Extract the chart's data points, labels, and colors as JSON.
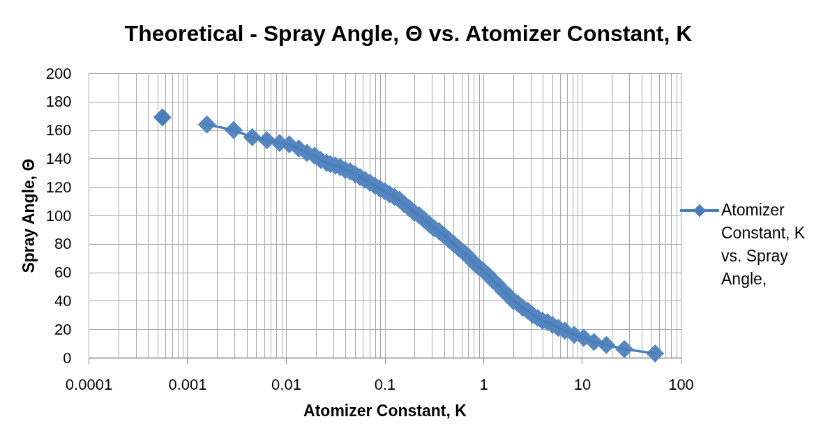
{
  "chart_data": {
    "type": "line",
    "title": "Theoretical - Spray Angle, Θ vs. Atomizer Constant, K",
    "xlabel": "Atomizer Constant, K",
    "ylabel": "Spray Angle, Θ",
    "log": "x",
    "xlim": [
      0.0001,
      100
    ],
    "xticks": [
      0.0001,
      {
        "value": 0.0002,
        "label": null
      },
      {
        "value": 0.0003,
        "label": null
      },
      {
        "value": 0.0004,
        "label": null
      },
      {
        "value": 0.0005,
        "label": null
      },
      {
        "value": 0.0006,
        "label": null
      },
      {
        "value": 0.0007,
        "label": null
      },
      {
        "value": 0.0008,
        "label": null
      },
      {
        "value": 0.0009,
        "label": null
      },
      0.001,
      {
        "value": 0.002,
        "label": null
      },
      {
        "value": 0.003,
        "label": null
      },
      {
        "value": 0.004,
        "label": null
      },
      {
        "value": 0.005,
        "label": null
      },
      {
        "value": 0.006,
        "label": null
      },
      {
        "value": 0.007,
        "label": null
      },
      {
        "value": 0.008,
        "label": null
      },
      {
        "value": 0.009,
        "label": null
      },
      0.01,
      {
        "value": 0.02,
        "label": null
      },
      {
        "value": 0.03,
        "label": null
      },
      {
        "value": 0.04,
        "label": null
      },
      {
        "value": 0.05,
        "label": null
      },
      {
        "value": 0.06,
        "label": null
      },
      {
        "value": 0.07,
        "label": null
      },
      {
        "value": 0.08,
        "label": null
      },
      {
        "value": 0.09,
        "label": null
      },
      0.1,
      {
        "value": 0.2,
        "label": null
      },
      {
        "value": 0.3,
        "label": null
      },
      {
        "value": 0.4,
        "label": null
      },
      {
        "value": 0.5,
        "label": null
      },
      {
        "value": 0.6,
        "label": null
      },
      {
        "value": 0.7,
        "label": null
      },
      {
        "value": 0.8,
        "label": null
      },
      {
        "value": 0.9,
        "label": null
      },
      1,
      {
        "value": 2,
        "label": null
      },
      {
        "value": 3,
        "label": null
      },
      {
        "value": 4,
        "label": null
      },
      {
        "value": 5,
        "label": null
      },
      {
        "value": 6,
        "label": null
      },
      {
        "value": 7,
        "label": null
      },
      {
        "value": 8,
        "label": null
      },
      {
        "value": 9,
        "label": null
      },
      10,
      {
        "value": 20,
        "label": null
      },
      {
        "value": 30,
        "label": null
      },
      {
        "value": 40,
        "label": null
      },
      {
        "value": 50,
        "label": null
      },
      {
        "value": 60,
        "label": null
      },
      {
        "value": 70,
        "label": null
      },
      {
        "value": 80,
        "label": null
      },
      {
        "value": 90,
        "label": null
      },
      100
    ],
    "ylim": [
      0,
      200
    ],
    "yticks": [
      0,
      20,
      40,
      60,
      80,
      100,
      120,
      140,
      160,
      180,
      200
    ],
    "grid": true,
    "legend": "right",
    "marker": "diamond",
    "line_style": "solid",
    "series": [
      {
        "type": "scatter",
        "color": "#4a7ebb",
        "x": [
          0.00056
        ],
        "values": [
          169
        ]
      },
      {
        "name": "Atomizer Constant, K vs. Spray Angle,",
        "color": "#4a7ebb",
        "x": [
          0.00158,
          0.00295,
          0.00455,
          0.0064,
          0.0086,
          0.0108,
          0.0135,
          0.0163,
          0.0195,
          0.0225,
          0.0258,
          0.0282,
          0.0316,
          0.0355,
          0.0398,
          0.0447,
          0.0501,
          0.0562,
          0.0631,
          0.0708,
          0.0794,
          0.0891,
          0.1,
          0.112,
          0.126,
          0.141,
          0.158,
          0.178,
          0.2,
          0.224,
          0.251,
          0.282,
          0.316,
          0.355,
          0.398,
          0.447,
          0.501,
          0.562,
          0.631,
          0.708,
          0.794,
          0.891,
          1.0,
          1.12,
          1.26,
          1.41,
          1.58,
          1.78,
          2.0,
          2.24,
          2.51,
          2.82,
          3.16,
          3.55,
          3.98,
          4.47,
          5.01,
          5.75,
          6.7,
          8.3,
          10.4,
          13.2,
          17.6,
          26.8,
          55
        ],
        "values": [
          164,
          160,
          155,
          153,
          151,
          150,
          147,
          144,
          142,
          139,
          137,
          136,
          135,
          134,
          132,
          131,
          129,
          127,
          125,
          123,
          121,
          119,
          117,
          115,
          113,
          111,
          108,
          105,
          102,
          100,
          97,
          94,
          91,
          89,
          86,
          83,
          80,
          77,
          74,
          71,
          67,
          64,
          61,
          58,
          54,
          51,
          47,
          44,
          40,
          38,
          35,
          33,
          30,
          28,
          26,
          25,
          23,
          21,
          19,
          16,
          14,
          11,
          9,
          6,
          3
        ]
      }
    ]
  }
}
